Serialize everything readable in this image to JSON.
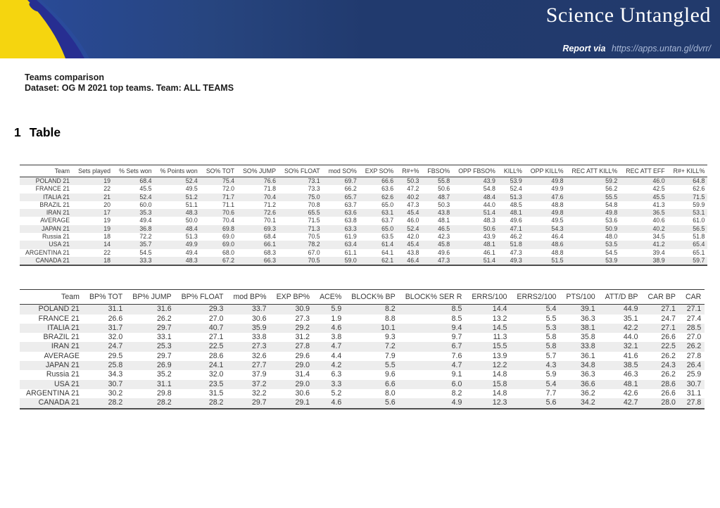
{
  "banner": {
    "brand": "Science Untangled",
    "report_via_label": "Report via",
    "report_url": "https://apps.untan.gl/dvrr/"
  },
  "page": {
    "title": "Teams comparison",
    "subtitle": "Dataset: OG M 2021 top teams. Team: ALL TEAMS"
  },
  "section": {
    "number": "1",
    "title": "Table"
  },
  "colors": {
    "banner_navy": "#213a6e",
    "banner_bright_blue": "#2a4b9b",
    "ball_yellow": "#f5d50f",
    "ball_stripe_blue": "#272e91",
    "row_stripe_gray": "#ededed",
    "table_text": "#3a3a3a"
  },
  "table1": {
    "columns": [
      "Team",
      "Sets played",
      "% Sets won",
      "% Points won",
      "SO% TOT",
      "SO% JUMP",
      "SO% FLOAT",
      "mod SO%",
      "EXP SO%",
      "R#+%",
      "FBSO%",
      "OPP FBSO%",
      "KILL%",
      "OPP KILL%",
      "REC ATT KILL%",
      "REC ATT EFF",
      "R#+ KILL%"
    ],
    "rows": [
      [
        "POLAND 21",
        "19",
        "68.4",
        "52.4",
        "75.4",
        "76.6",
        "73.1",
        "69.7",
        "66.6",
        "50.3",
        "55.8",
        "43.9",
        "53.9",
        "49.8",
        "59.2",
        "46.0",
        "64.8"
      ],
      [
        "FRANCE 21",
        "22",
        "45.5",
        "49.5",
        "72.0",
        "71.8",
        "73.3",
        "66.2",
        "63.6",
        "47.2",
        "50.6",
        "54.8",
        "52.4",
        "49.9",
        "56.2",
        "42.5",
        "62.6"
      ],
      [
        "ITALIA 21",
        "21",
        "52.4",
        "51.2",
        "71.7",
        "70.4",
        "75.0",
        "65.7",
        "62.6",
        "40.2",
        "48.7",
        "48.4",
        "51.3",
        "47.6",
        "55.5",
        "45.5",
        "71.5"
      ],
      [
        "BRAZIL 21",
        "20",
        "60.0",
        "51.1",
        "71.1",
        "71.2",
        "70.8",
        "63.7",
        "65.0",
        "47.3",
        "50.3",
        "44.0",
        "48.5",
        "48.8",
        "54.8",
        "41.3",
        "59.9"
      ],
      [
        "IRAN 21",
        "17",
        "35.3",
        "48.3",
        "70.6",
        "72.6",
        "65.5",
        "63.6",
        "63.1",
        "45.4",
        "43.8",
        "51.4",
        "48.1",
        "49.8",
        "49.8",
        "36.5",
        "53.1"
      ],
      [
        "AVERAGE",
        "19",
        "49.4",
        "50.0",
        "70.4",
        "70.1",
        "71.5",
        "63.8",
        "63.7",
        "46.0",
        "48.1",
        "48.3",
        "49.6",
        "49.5",
        "53.6",
        "40.6",
        "61.0"
      ],
      [
        "JAPAN 21",
        "19",
        "36.8",
        "48.4",
        "69.8",
        "69.3",
        "71.3",
        "63.3",
        "65.0",
        "52.4",
        "46.5",
        "50.6",
        "47.1",
        "54.3",
        "50.9",
        "40.2",
        "56.5"
      ],
      [
        "Russia 21",
        "18",
        "72.2",
        "51.3",
        "69.0",
        "68.4",
        "70.5",
        "61.9",
        "63.5",
        "42.0",
        "42.3",
        "43.9",
        "46.2",
        "46.4",
        "48.0",
        "34.5",
        "51.8"
      ],
      [
        "USA 21",
        "14",
        "35.7",
        "49.9",
        "69.0",
        "66.1",
        "78.2",
        "63.4",
        "61.4",
        "45.4",
        "45.8",
        "48.1",
        "51.8",
        "48.6",
        "53.5",
        "41.2",
        "65.4"
      ],
      [
        "ARGENTINA 21",
        "22",
        "54.5",
        "49.4",
        "68.0",
        "68.3",
        "67.0",
        "61.1",
        "64.1",
        "43.8",
        "49.6",
        "46.1",
        "47.3",
        "48.8",
        "54.5",
        "39.4",
        "65.1"
      ],
      [
        "CANADA 21",
        "18",
        "33.3",
        "48.3",
        "67.2",
        "66.3",
        "70.5",
        "59.0",
        "62.1",
        "46.4",
        "47.3",
        "51.4",
        "49.3",
        "51.5",
        "53.9",
        "38.9",
        "59.7"
      ]
    ]
  },
  "table2": {
    "columns": [
      "Team",
      "BP% TOT",
      "BP% JUMP",
      "BP% FLOAT",
      "mod BP%",
      "EXP BP%",
      "ACE%",
      "BLOCK% BP",
      "BLOCK% SER R",
      "ERRS/100",
      "ERRS2/100",
      "PTS/100",
      "ATT/D BP",
      "CAR BP",
      "CAR"
    ],
    "rows": [
      [
        "POLAND 21",
        "31.1",
        "31.6",
        "29.3",
        "33.7",
        "30.9",
        "5.9",
        "8.2",
        "8.5",
        "14.4",
        "5.4",
        "39.1",
        "44.9",
        "27.1",
        "27.1"
      ],
      [
        "FRANCE 21",
        "26.6",
        "26.2",
        "27.0",
        "30.6",
        "27.3",
        "1.9",
        "8.8",
        "8.5",
        "13.2",
        "5.5",
        "36.3",
        "35.1",
        "24.7",
        "27.4"
      ],
      [
        "ITALIA 21",
        "31.7",
        "29.7",
        "40.7",
        "35.9",
        "29.2",
        "4.6",
        "10.1",
        "9.4",
        "14.5",
        "5.3",
        "38.1",
        "42.2",
        "27.1",
        "28.5"
      ],
      [
        "BRAZIL 21",
        "32.0",
        "33.1",
        "27.1",
        "33.8",
        "31.2",
        "3.8",
        "9.3",
        "9.7",
        "11.3",
        "5.8",
        "35.8",
        "44.0",
        "26.6",
        "27.0"
      ],
      [
        "IRAN 21",
        "24.7",
        "25.3",
        "22.5",
        "27.3",
        "27.8",
        "4.7",
        "7.2",
        "6.7",
        "15.5",
        "5.8",
        "33.8",
        "32.1",
        "22.5",
        "26.2"
      ],
      [
        "AVERAGE",
        "29.5",
        "29.7",
        "28.6",
        "32.6",
        "29.6",
        "4.4",
        "7.9",
        "7.6",
        "13.9",
        "5.7",
        "36.1",
        "41.6",
        "26.2",
        "27.8"
      ],
      [
        "JAPAN 21",
        "25.8",
        "26.9",
        "24.1",
        "27.7",
        "29.0",
        "4.2",
        "5.5",
        "4.7",
        "12.2",
        "4.3",
        "34.8",
        "38.5",
        "24.3",
        "26.4"
      ],
      [
        "Russia 21",
        "34.3",
        "35.2",
        "32.0",
        "37.9",
        "31.4",
        "6.3",
        "9.6",
        "9.1",
        "14.8",
        "5.9",
        "36.3",
        "46.3",
        "26.2",
        "25.9"
      ],
      [
        "USA 21",
        "30.7",
        "31.1",
        "23.5",
        "37.2",
        "29.0",
        "3.3",
        "6.6",
        "6.0",
        "15.8",
        "5.4",
        "36.6",
        "48.1",
        "28.6",
        "30.7"
      ],
      [
        "ARGENTINA 21",
        "30.2",
        "29.8",
        "31.5",
        "32.2",
        "30.6",
        "5.2",
        "8.0",
        "8.2",
        "14.8",
        "7.7",
        "36.2",
        "42.6",
        "26.6",
        "31.1"
      ],
      [
        "CANADA 21",
        "28.2",
        "28.2",
        "28.2",
        "29.7",
        "29.1",
        "4.6",
        "5.6",
        "4.9",
        "12.3",
        "5.6",
        "34.2",
        "42.7",
        "28.0",
        "27.8"
      ]
    ]
  }
}
